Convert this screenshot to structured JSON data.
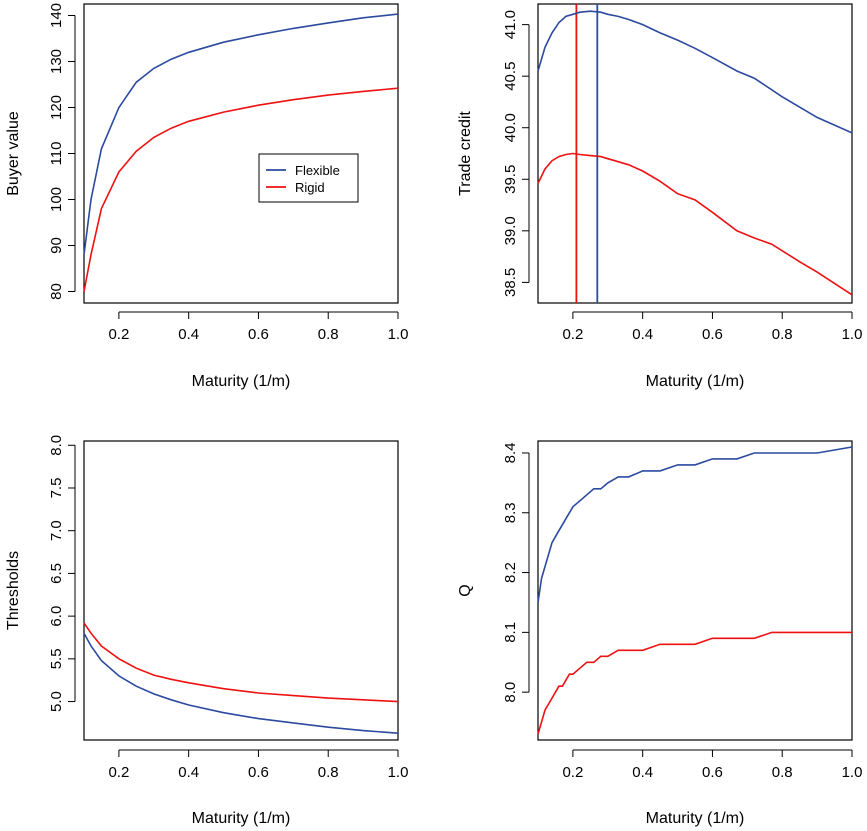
{
  "colors": {
    "flexible": "#2b4aa0",
    "rigid": "#ee1111"
  },
  "chart_data": [
    {
      "type": "line",
      "panel": "top-left",
      "xlabel": "Maturity (1/m)",
      "ylabel": "Buyer value",
      "xlim": [
        0.1,
        1.0
      ],
      "ylim": [
        77.5,
        142.5
      ],
      "xticks": [
        "0.2",
        "0.4",
        "0.6",
        "0.8",
        "1.0"
      ],
      "yticks": [
        "80",
        "90",
        "100",
        "110",
        "120",
        "130",
        "140"
      ],
      "legend": {
        "placement": "center-right",
        "entries": [
          "Flexible",
          "Rigid"
        ]
      },
      "series": [
        {
          "name": "Flexible",
          "color_key": "flexible",
          "x": [
            0.1,
            0.12,
            0.15,
            0.2,
            0.25,
            0.3,
            0.35,
            0.4,
            0.5,
            0.6,
            0.7,
            0.8,
            0.9,
            1.0
          ],
          "y": [
            88,
            100,
            111,
            120,
            125.5,
            128.5,
            130.5,
            132,
            134.2,
            135.8,
            137.2,
            138.4,
            139.5,
            140.3
          ]
        },
        {
          "name": "Rigid",
          "color_key": "rigid",
          "x": [
            0.1,
            0.12,
            0.15,
            0.2,
            0.25,
            0.3,
            0.35,
            0.4,
            0.5,
            0.6,
            0.7,
            0.8,
            0.9,
            1.0
          ],
          "y": [
            80,
            88,
            98,
            106,
            110.5,
            113.5,
            115.5,
            117,
            119,
            120.5,
            121.7,
            122.7,
            123.5,
            124.2
          ]
        }
      ]
    },
    {
      "type": "line",
      "panel": "top-right",
      "xlabel": "Maturity (1/m)",
      "ylabel": "Trade credit",
      "xlim": [
        0.1,
        1.0
      ],
      "ylim": [
        38.3,
        41.2
      ],
      "xticks": [
        "0.2",
        "0.4",
        "0.6",
        "0.8",
        "1.0"
      ],
      "yticks": [
        "38.5",
        "39.0",
        "39.5",
        "40.0",
        "40.5",
        "41.0"
      ],
      "vlines": [
        {
          "x": 0.21,
          "color_key": "rigid"
        },
        {
          "x": 0.27,
          "color_key": "flexible"
        }
      ],
      "series": [
        {
          "name": "Flexible",
          "color_key": "flexible",
          "x": [
            0.1,
            0.12,
            0.14,
            0.16,
            0.18,
            0.2,
            0.22,
            0.25,
            0.28,
            0.3,
            0.33,
            0.36,
            0.4,
            0.45,
            0.5,
            0.55,
            0.6,
            0.67,
            0.72,
            0.8,
            0.9,
            1.0
          ],
          "y": [
            40.55,
            40.78,
            40.92,
            41.02,
            41.08,
            41.1,
            41.12,
            41.13,
            41.12,
            41.1,
            41.08,
            41.05,
            41.0,
            40.92,
            40.85,
            40.77,
            40.68,
            40.55,
            40.48,
            40.3,
            40.1,
            39.95
          ]
        },
        {
          "name": "Rigid",
          "color_key": "rigid",
          "x": [
            0.1,
            0.12,
            0.14,
            0.16,
            0.18,
            0.2,
            0.22,
            0.25,
            0.28,
            0.3,
            0.33,
            0.36,
            0.4,
            0.45,
            0.5,
            0.55,
            0.6,
            0.67,
            0.72,
            0.77,
            0.85,
            0.9,
            1.0
          ],
          "y": [
            39.46,
            39.6,
            39.68,
            39.72,
            39.74,
            39.75,
            39.74,
            39.73,
            39.72,
            39.7,
            39.67,
            39.64,
            39.58,
            39.48,
            39.36,
            39.3,
            39.18,
            39.0,
            38.93,
            38.87,
            38.7,
            38.6,
            38.38
          ]
        }
      ]
    },
    {
      "type": "line",
      "panel": "bottom-left",
      "xlabel": "Maturity (1/m)",
      "ylabel": "Thresholds",
      "xlim": [
        0.1,
        1.0
      ],
      "ylim": [
        4.55,
        8.05
      ],
      "xticks": [
        "0.2",
        "0.4",
        "0.6",
        "0.8",
        "1.0"
      ],
      "yticks": [
        "5.0",
        "5.5",
        "6.0",
        "6.5",
        "7.0",
        "7.5",
        "8.0"
      ],
      "series": [
        {
          "name": "Flexible",
          "color_key": "flexible",
          "x": [
            0.1,
            0.12,
            0.15,
            0.2,
            0.25,
            0.3,
            0.35,
            0.4,
            0.5,
            0.6,
            0.7,
            0.8,
            0.9,
            1.0
          ],
          "y": [
            5.8,
            5.65,
            5.48,
            5.3,
            5.18,
            5.09,
            5.02,
            4.96,
            4.87,
            4.8,
            4.75,
            4.7,
            4.66,
            4.63
          ]
        },
        {
          "name": "Rigid",
          "color_key": "rigid",
          "x": [
            0.1,
            0.12,
            0.15,
            0.2,
            0.25,
            0.3,
            0.35,
            0.4,
            0.5,
            0.6,
            0.7,
            0.8,
            0.9,
            1.0
          ],
          "y": [
            5.92,
            5.8,
            5.65,
            5.5,
            5.39,
            5.31,
            5.26,
            5.22,
            5.15,
            5.1,
            5.07,
            5.04,
            5.02,
            5.0
          ]
        }
      ]
    },
    {
      "type": "line",
      "panel": "bottom-right",
      "xlabel": "Maturity (1/m)",
      "ylabel": "Q",
      "xlim": [
        0.1,
        1.0
      ],
      "ylim": [
        7.92,
        8.42
      ],
      "xticks": [
        "0.2",
        "0.4",
        "0.6",
        "0.8",
        "1.0"
      ],
      "yticks": [
        "8.0",
        "8.1",
        "8.2",
        "8.3",
        "8.4"
      ],
      "series": [
        {
          "name": "Flexible",
          "color_key": "flexible",
          "x": [
            0.1,
            0.11,
            0.12,
            0.13,
            0.14,
            0.15,
            0.16,
            0.17,
            0.18,
            0.19,
            0.2,
            0.22,
            0.24,
            0.26,
            0.28,
            0.3,
            0.33,
            0.36,
            0.4,
            0.45,
            0.5,
            0.55,
            0.6,
            0.67,
            0.72,
            0.8,
            0.9,
            1.0
          ],
          "y": [
            8.15,
            8.19,
            8.21,
            8.23,
            8.25,
            8.26,
            8.27,
            8.28,
            8.29,
            8.3,
            8.31,
            8.32,
            8.33,
            8.34,
            8.34,
            8.35,
            8.36,
            8.36,
            8.37,
            8.37,
            8.38,
            8.38,
            8.39,
            8.39,
            8.4,
            8.4,
            8.4,
            8.41
          ]
        },
        {
          "name": "Rigid",
          "color_key": "rigid",
          "x": [
            0.1,
            0.11,
            0.12,
            0.13,
            0.14,
            0.15,
            0.16,
            0.17,
            0.18,
            0.19,
            0.2,
            0.22,
            0.24,
            0.26,
            0.28,
            0.3,
            0.33,
            0.36,
            0.4,
            0.45,
            0.5,
            0.55,
            0.6,
            0.67,
            0.72,
            0.77,
            0.85,
            0.9,
            1.0
          ],
          "y": [
            7.93,
            7.95,
            7.97,
            7.98,
            7.99,
            8.0,
            8.01,
            8.01,
            8.02,
            8.03,
            8.03,
            8.04,
            8.05,
            8.05,
            8.06,
            8.06,
            8.07,
            8.07,
            8.07,
            8.08,
            8.08,
            8.08,
            8.09,
            8.09,
            8.09,
            8.1,
            8.1,
            8.1,
            8.1
          ]
        }
      ]
    }
  ]
}
